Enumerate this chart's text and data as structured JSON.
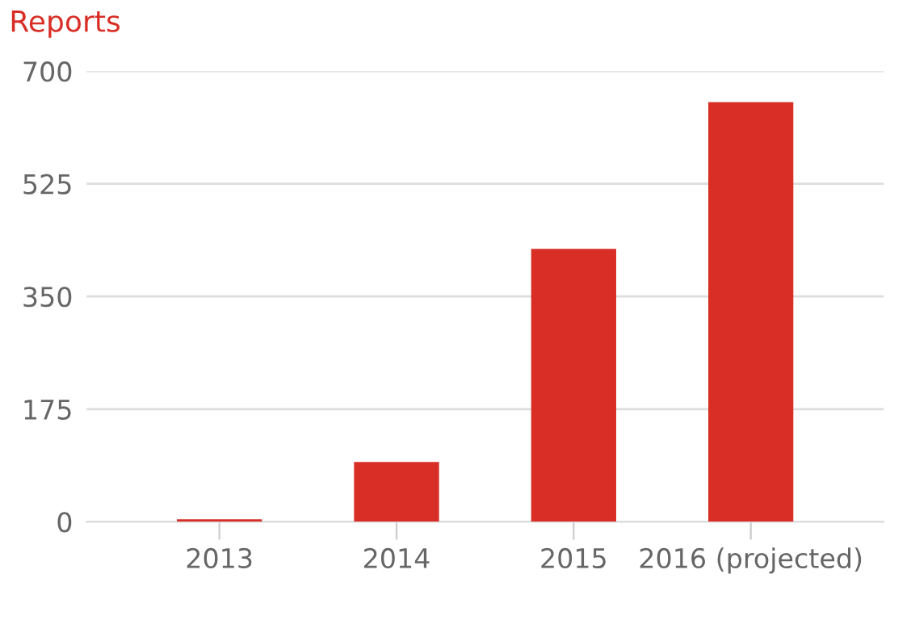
{
  "chart_data": {
    "type": "bar",
    "title": "Reports",
    "categories": [
      "2013",
      "2014",
      "2015",
      "2016 (projected)"
    ],
    "values": [
      4,
      93,
      424,
      652
    ],
    "color": "#d82e26",
    "ylim": [
      0,
      700
    ],
    "yticks": [
      0,
      175,
      350,
      525,
      700
    ],
    "grid": "y"
  }
}
